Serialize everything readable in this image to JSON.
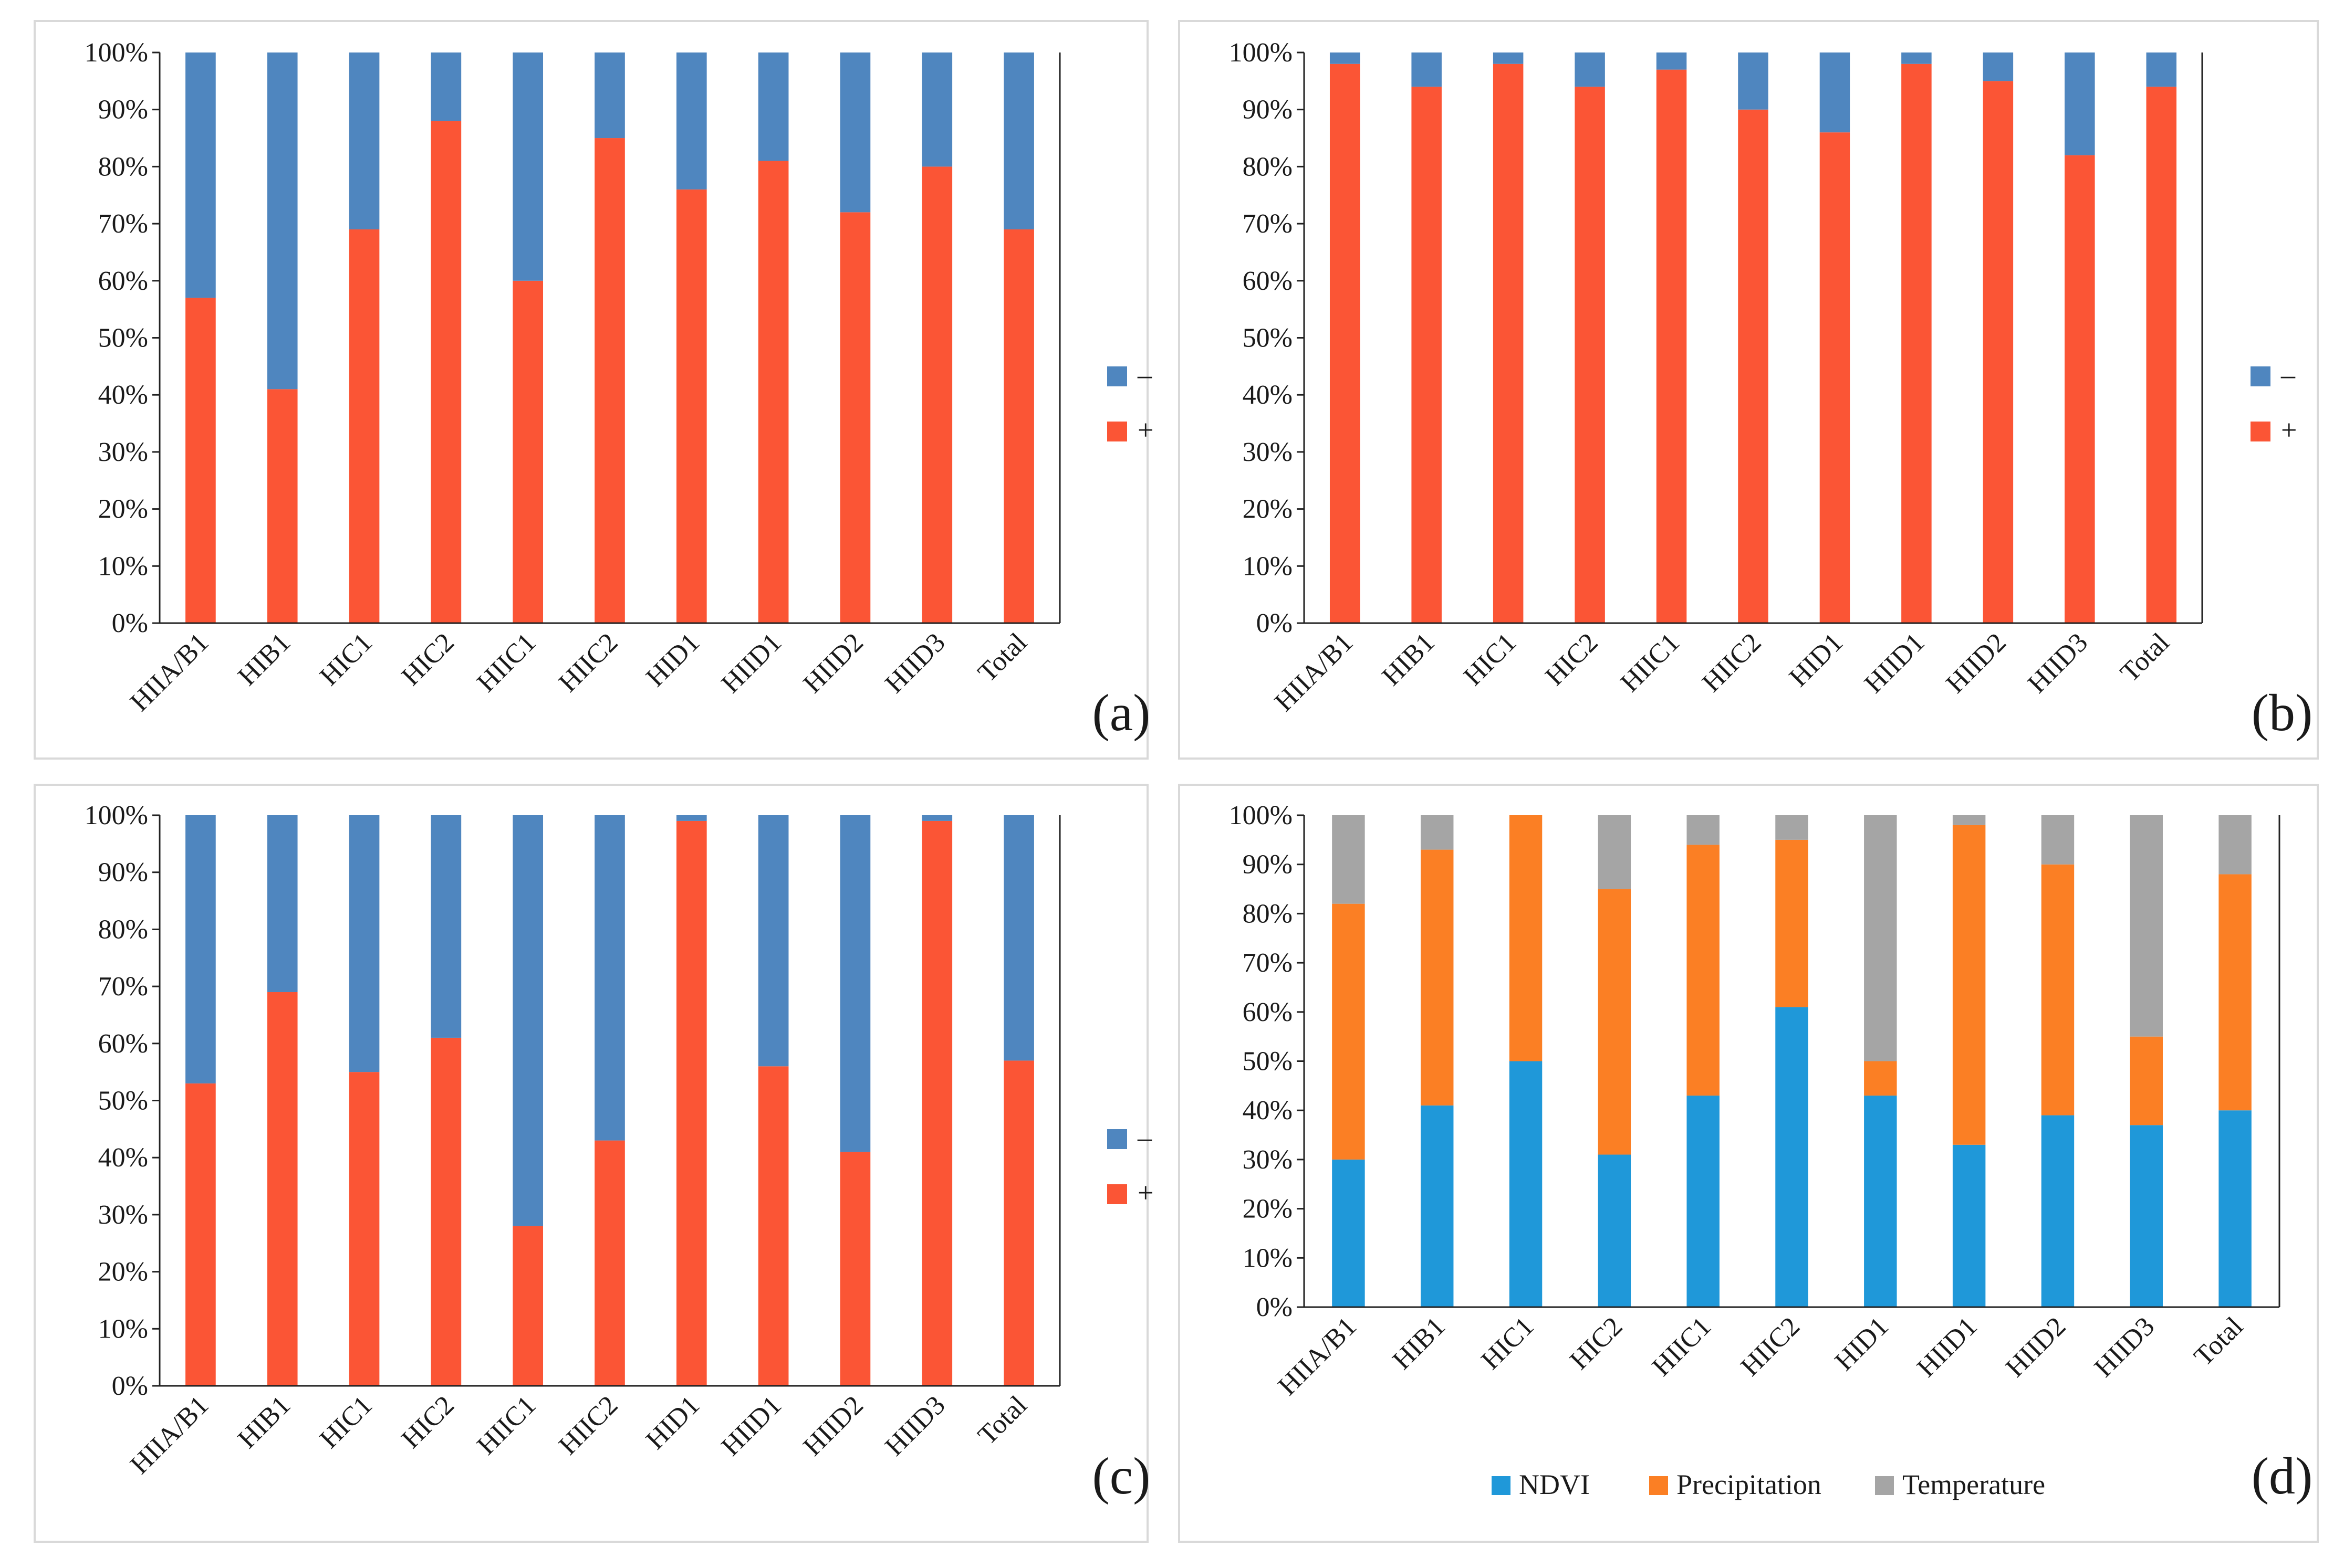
{
  "colors": {
    "minus": "#4f86bf",
    "plus": "#fb5535",
    "ndvi": "#1f98d9",
    "precipitation": "#fb7f24",
    "temperature": "#a5a5a5"
  },
  "chart_data": [
    {
      "id": "a",
      "type": "bar",
      "stacked": true,
      "panel_label": "(a)",
      "categories": [
        "HIIA/B1",
        "HIB1",
        "HIC1",
        "HIC2",
        "HIIC1",
        "HIIC2",
        "HID1",
        "HIID1",
        "HIID2",
        "HIID3",
        "Total"
      ],
      "y_ticks": [
        "0%",
        "10%",
        "20%",
        "30%",
        "40%",
        "50%",
        "60%",
        "70%",
        "80%",
        "90%",
        "100%"
      ],
      "ylim": [
        0,
        100
      ],
      "legend_position": "right",
      "series": [
        {
          "name": "+",
          "color": "#fb5535",
          "values": [
            57,
            41,
            69,
            88,
            60,
            85,
            76,
            81,
            72,
            80,
            69
          ]
        },
        {
          "name": "–",
          "color": "#4f86bf",
          "values": [
            43,
            59,
            31,
            12,
            40,
            15,
            24,
            19,
            28,
            20,
            31
          ]
        }
      ],
      "legend": [
        {
          "label": "–",
          "color": "#4f86bf"
        },
        {
          "label": "+",
          "color": "#fb5535"
        }
      ]
    },
    {
      "id": "b",
      "type": "bar",
      "stacked": true,
      "panel_label": "(b)",
      "categories": [
        "HIIA/B1",
        "HIB1",
        "HIC1",
        "HIC2",
        "HIIC1",
        "HIIC2",
        "HID1",
        "HIID1",
        "HIID2",
        "HIID3",
        "Total"
      ],
      "y_ticks": [
        "0%",
        "10%",
        "20%",
        "30%",
        "40%",
        "50%",
        "60%",
        "70%",
        "80%",
        "90%",
        "100%"
      ],
      "ylim": [
        0,
        100
      ],
      "legend_position": "right",
      "series": [
        {
          "name": "+",
          "color": "#fb5535",
          "values": [
            98,
            94,
            98,
            94,
            97,
            90,
            86,
            98,
            95,
            82,
            94
          ]
        },
        {
          "name": "–",
          "color": "#4f86bf",
          "values": [
            2,
            6,
            2,
            6,
            3,
            10,
            14,
            2,
            5,
            18,
            6
          ]
        }
      ],
      "legend": [
        {
          "label": "–",
          "color": "#4f86bf"
        },
        {
          "label": "+",
          "color": "#fb5535"
        }
      ]
    },
    {
      "id": "c",
      "type": "bar",
      "stacked": true,
      "panel_label": "(c)",
      "categories": [
        "HIIA/B1",
        "HIB1",
        "HIC1",
        "HIC2",
        "HIIC1",
        "HIIC2",
        "HID1",
        "HIID1",
        "HIID2",
        "HIID3",
        "Total"
      ],
      "y_ticks": [
        "0%",
        "10%",
        "20%",
        "30%",
        "40%",
        "50%",
        "60%",
        "70%",
        "80%",
        "90%",
        "100%"
      ],
      "ylim": [
        0,
        100
      ],
      "legend_position": "right",
      "series": [
        {
          "name": "+",
          "color": "#fb5535",
          "values": [
            53,
            69,
            55,
            61,
            28,
            43,
            99,
            56,
            41,
            99,
            57
          ]
        },
        {
          "name": "–",
          "color": "#4f86bf",
          "values": [
            47,
            31,
            45,
            39,
            72,
            57,
            1,
            44,
            59,
            1,
            43
          ]
        }
      ],
      "legend": [
        {
          "label": "–",
          "color": "#4f86bf"
        },
        {
          "label": "+",
          "color": "#fb5535"
        }
      ]
    },
    {
      "id": "d",
      "type": "bar",
      "stacked": true,
      "panel_label": "(d)",
      "categories": [
        "HIIA/B1",
        "HIB1",
        "HIC1",
        "HIC2",
        "HIIC1",
        "HIIC2",
        "HID1",
        "HIID1",
        "HIID2",
        "HIID3",
        "Total"
      ],
      "y_ticks": [
        "0%",
        "10%",
        "20%",
        "30%",
        "40%",
        "50%",
        "60%",
        "70%",
        "80%",
        "90%",
        "100%"
      ],
      "ylim": [
        0,
        100
      ],
      "legend_position": "bottom",
      "series": [
        {
          "name": "NDVI",
          "color": "#1f98d9",
          "values": [
            30,
            41,
            50,
            31,
            43,
            61,
            43,
            33,
            39,
            37,
            40
          ]
        },
        {
          "name": "Precipitation",
          "color": "#fb7f24",
          "values": [
            52,
            52,
            50,
            54,
            51,
            34,
            7,
            65,
            51,
            18,
            48
          ]
        },
        {
          "name": "Temperature",
          "color": "#a5a5a5",
          "values": [
            18,
            7,
            0,
            15,
            6,
            5,
            50,
            2,
            10,
            45,
            12
          ]
        }
      ],
      "legend": [
        {
          "label": "NDVI",
          "color": "#1f98d9"
        },
        {
          "label": "Precipitation",
          "color": "#fb7f24"
        },
        {
          "label": "Temperature",
          "color": "#a5a5a5"
        }
      ]
    }
  ]
}
